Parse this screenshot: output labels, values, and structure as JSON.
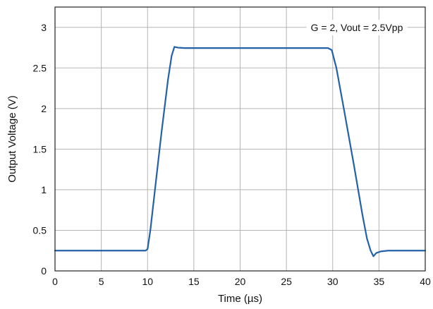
{
  "chart_data": {
    "type": "line",
    "xlabel": "Time (µs)",
    "ylabel": "Output Voltage (V)",
    "xlim": [
      0,
      40
    ],
    "ylim": [
      0,
      3.25
    ],
    "x_ticks": [
      0,
      5,
      10,
      15,
      20,
      25,
      30,
      35,
      40
    ],
    "y_ticks": [
      0,
      0.5,
      1,
      1.5,
      2,
      2.5,
      3
    ],
    "x_tick_labels": [
      "0",
      "5",
      "10",
      "15",
      "20",
      "25",
      "30",
      "35",
      "40"
    ],
    "y_tick_labels": [
      "0",
      "0.5",
      "1",
      "1.5",
      "2",
      "2.5",
      "3"
    ],
    "grid": true,
    "annotation": "G = 2, Vout = 2.5Vpp",
    "series": [
      {
        "color": "#2461a8",
        "x": [
          0,
          5,
          9.8,
          10.0,
          10.3,
          10.8,
          11.5,
          12.2,
          12.6,
          12.9,
          13.3,
          14,
          20,
          25,
          29.5,
          29.9,
          30.4,
          31.2,
          32.3,
          33.2,
          33.7,
          34.1,
          34.4,
          34.7,
          35.2,
          36,
          40
        ],
        "y": [
          0.25,
          0.25,
          0.25,
          0.27,
          0.5,
          1.0,
          1.7,
          2.35,
          2.65,
          2.76,
          2.75,
          2.745,
          2.745,
          2.745,
          2.745,
          2.72,
          2.5,
          2.0,
          1.3,
          0.7,
          0.4,
          0.25,
          0.18,
          0.22,
          0.24,
          0.25,
          0.25
        ]
      }
    ]
  }
}
